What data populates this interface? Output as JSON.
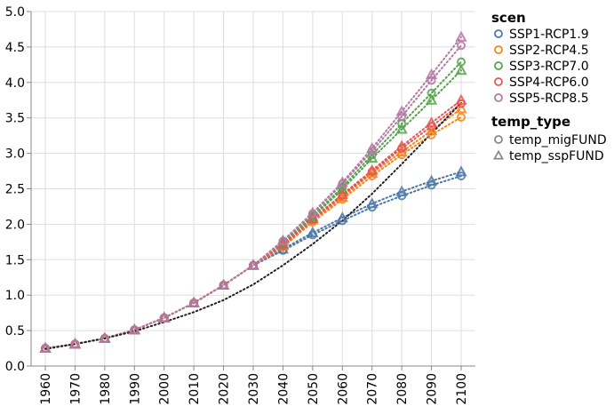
{
  "chart_data": {
    "type": "line",
    "x": [
      1960,
      1970,
      1980,
      1990,
      2000,
      2010,
      2020,
      2030,
      2040,
      2050,
      2060,
      2070,
      2080,
      2090,
      2100
    ],
    "ylim": [
      0,
      5
    ],
    "yticks": [
      "0.0",
      "0.5",
      "1.0",
      "1.5",
      "2.0",
      "2.5",
      "3.0",
      "3.5",
      "4.0",
      "4.5",
      "5.0"
    ],
    "grid": true,
    "legend_position": "right",
    "legend": {
      "color_title": "scen",
      "shape_title": "temp_type",
      "color_entries": [
        {
          "label": "SSP1-RCP1.9",
          "color": "#4c78a8"
        },
        {
          "label": "SSP2-RCP4.5",
          "color": "#f58518"
        },
        {
          "label": "SSP3-RCP7.0",
          "color": "#54a24b"
        },
        {
          "label": "SSP4-RCP6.0",
          "color": "#e45756"
        },
        {
          "label": "SSP5-RCP8.5",
          "color": "#b279a2"
        }
      ],
      "shape_entries": [
        {
          "label": "temp_migFUND",
          "shape": "circle"
        },
        {
          "label": "temp_sspFUND",
          "shape": "triangle"
        }
      ]
    },
    "series": [
      {
        "scen": "SSP1-RCP1.9",
        "temp_type": "temp_migFUND",
        "color": "#4c78a8",
        "shape": "circle",
        "values": [
          0.25,
          0.31,
          0.39,
          0.51,
          0.68,
          0.89,
          1.14,
          1.42,
          1.63,
          1.85,
          2.05,
          2.24,
          2.4,
          2.55,
          2.68
        ]
      },
      {
        "scen": "SSP1-RCP1.9",
        "temp_type": "temp_sspFUND",
        "color": "#4c78a8",
        "shape": "triangle",
        "values": [
          0.25,
          0.31,
          0.39,
          0.51,
          0.68,
          0.89,
          1.14,
          1.42,
          1.65,
          1.88,
          2.09,
          2.29,
          2.46,
          2.61,
          2.74
        ]
      },
      {
        "scen": "SSP2-RCP4.5",
        "temp_type": "temp_migFUND",
        "color": "#f58518",
        "shape": "circle",
        "values": [
          0.25,
          0.31,
          0.39,
          0.51,
          0.68,
          0.89,
          1.14,
          1.42,
          1.68,
          2.03,
          2.35,
          2.68,
          2.98,
          3.26,
          3.51
        ]
      },
      {
        "scen": "SSP2-RCP4.5",
        "temp_type": "temp_sspFUND",
        "color": "#f58518",
        "shape": "triangle",
        "values": [
          0.25,
          0.31,
          0.39,
          0.51,
          0.68,
          0.89,
          1.14,
          1.42,
          1.7,
          2.06,
          2.38,
          2.72,
          3.02,
          3.32,
          3.63
        ]
      },
      {
        "scen": "SSP3-RCP7.0",
        "temp_type": "temp_migFUND",
        "color": "#54a24b",
        "shape": "circle",
        "values": [
          0.25,
          0.31,
          0.39,
          0.51,
          0.68,
          0.89,
          1.14,
          1.42,
          1.74,
          2.12,
          2.52,
          2.98,
          3.42,
          3.85,
          4.29
        ]
      },
      {
        "scen": "SSP3-RCP7.0",
        "temp_type": "temp_sspFUND",
        "color": "#54a24b",
        "shape": "triangle",
        "values": [
          0.25,
          0.31,
          0.39,
          0.51,
          0.68,
          0.89,
          1.14,
          1.42,
          1.73,
          2.1,
          2.49,
          2.93,
          3.34,
          3.75,
          4.17
        ]
      },
      {
        "scen": "SSP4-RCP6.0",
        "temp_type": "temp_migFUND",
        "color": "#e45756",
        "shape": "circle",
        "values": [
          0.25,
          0.31,
          0.39,
          0.51,
          0.68,
          0.89,
          1.14,
          1.42,
          1.7,
          2.06,
          2.4,
          2.74,
          3.07,
          3.38,
          3.7
        ]
      },
      {
        "scen": "SSP4-RCP6.0",
        "temp_type": "temp_sspFUND",
        "color": "#e45756",
        "shape": "triangle",
        "values": [
          0.25,
          0.31,
          0.39,
          0.51,
          0.68,
          0.89,
          1.14,
          1.42,
          1.71,
          2.08,
          2.42,
          2.76,
          3.1,
          3.43,
          3.75
        ]
      },
      {
        "scen": "SSP5-RCP8.5",
        "temp_type": "temp_migFUND",
        "color": "#b279a2",
        "shape": "circle",
        "values": [
          0.25,
          0.31,
          0.39,
          0.51,
          0.68,
          0.89,
          1.14,
          1.42,
          1.76,
          2.15,
          2.57,
          3.03,
          3.52,
          4.03,
          4.52
        ]
      },
      {
        "scen": "SSP5-RCP8.5",
        "temp_type": "temp_sspFUND",
        "color": "#b279a2",
        "shape": "triangle",
        "values": [
          0.25,
          0.31,
          0.39,
          0.51,
          0.68,
          0.89,
          1.14,
          1.42,
          1.77,
          2.16,
          2.59,
          3.07,
          3.59,
          4.11,
          4.64
        ]
      },
      {
        "color": "#222222",
        "shape": "none",
        "values": [
          0.24,
          0.31,
          0.39,
          0.49,
          0.62,
          0.76,
          0.93,
          1.15,
          1.42,
          1.72,
          2.05,
          2.43,
          2.85,
          3.28,
          3.71
        ]
      }
    ]
  }
}
